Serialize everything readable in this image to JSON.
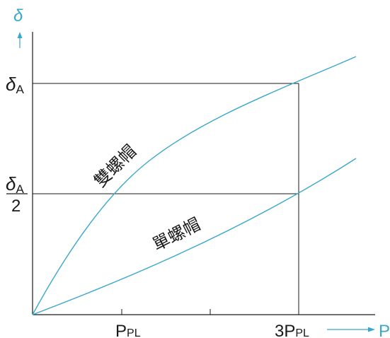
{
  "diagram": {
    "y_axis_symbol": "δ",
    "x_axis_symbol": "P",
    "y_tick_full": {
      "symbol": "δ",
      "subscript": "A"
    },
    "y_tick_half": {
      "numerator_symbol": "δ",
      "numerator_subscript": "A",
      "denominator": "2"
    },
    "x_tick_1": {
      "main": "P",
      "subscript": "PL"
    },
    "x_tick_3": {
      "main": "3P",
      "subscript": "PL"
    },
    "curves": [
      {
        "label": "雙螺帽"
      },
      {
        "label": "單螺帽"
      }
    ],
    "colors": {
      "curve": "#3aa8cc",
      "axis": "#1a1a1a",
      "arrow": "#3aa8cc"
    }
  }
}
